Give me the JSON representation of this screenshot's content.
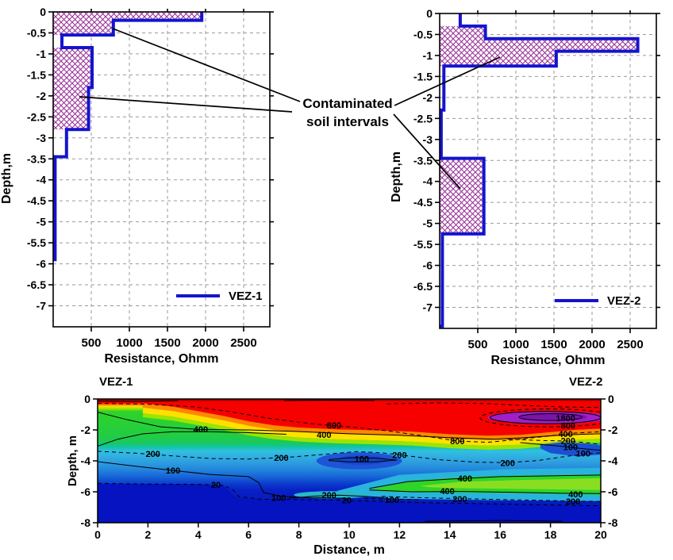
{
  "annotation": {
    "line1": "Contaminated",
    "line2": "soil intervals"
  },
  "colors": {
    "curve": "#1414cf",
    "hatch": "#993399",
    "grid": "#9a9a9a",
    "axis": "#000000",
    "section": {
      "dark_red": "#a80000",
      "red": "#f60000",
      "orange": "#ff8800",
      "yellow": "#ffe000",
      "chartreuse": "#9ce400",
      "green": "#2ed428",
      "teal": "#10c4a0",
      "cyan": "#30c0e0",
      "light_blue": "#2f8fe0",
      "blue": "#1d55d6",
      "deep_blue": "#0613c0",
      "purple": "#a01fc8",
      "purple_core": "#7a15a8",
      "wedge_core": "#8ade22"
    }
  },
  "chart_data": [
    {
      "id": "vez1",
      "type": "step-line",
      "legend": "VEZ-1",
      "xlabel": "Resistance, Ohmm",
      "ylabel": "Depth,m",
      "xlim": [
        0,
        2840
      ],
      "xticks": [
        500,
        1000,
        1500,
        2000,
        2500
      ],
      "ylim": [
        0,
        -7.5
      ],
      "yticks": [
        0,
        -0.5,
        -1,
        -1.5,
        -2,
        -2.5,
        -3,
        -3.5,
        -4,
        -4.5,
        -5,
        -5.5,
        -6,
        -6.5,
        -7
      ],
      "layers": [
        {
          "from": 0,
          "to": -0.2,
          "resistance": 1950
        },
        {
          "from": -0.2,
          "to": -0.55,
          "resistance": 790
        },
        {
          "from": -0.55,
          "to": -0.85,
          "resistance": 115
        },
        {
          "from": -0.85,
          "to": -1.8,
          "resistance": 510
        },
        {
          "from": -1.8,
          "to": -2.8,
          "resistance": 465
        },
        {
          "from": -2.8,
          "to": -3.45,
          "resistance": 175
        },
        {
          "from": -3.45,
          "to": -5.9,
          "resistance": 25
        }
      ],
      "contaminated_intervals": [
        [
          0,
          -0.55
        ],
        [
          -0.85,
          -2.8
        ]
      ]
    },
    {
      "id": "vez2",
      "type": "step-line",
      "legend": "VEZ-2",
      "xlabel": "Resistance, Ohmm",
      "ylabel": "Depth,m",
      "xlim": [
        0,
        2840
      ],
      "xticks": [
        500,
        1000,
        1500,
        2000,
        2500
      ],
      "ylim": [
        0,
        -7.5
      ],
      "yticks": [
        0,
        -0.5,
        -1,
        -1.5,
        -2,
        -2.5,
        -3,
        -3.5,
        -4,
        -4.5,
        -5,
        -5.5,
        -6,
        -6.5,
        -7
      ],
      "layers": [
        {
          "from": 0,
          "to": -0.3,
          "resistance": 270
        },
        {
          "from": -0.3,
          "to": -0.6,
          "resistance": 600
        },
        {
          "from": -0.6,
          "to": -0.9,
          "resistance": 2600
        },
        {
          "from": -0.9,
          "to": -1.25,
          "resistance": 1530
        },
        {
          "from": -1.25,
          "to": -2.3,
          "resistance": 55
        },
        {
          "from": -2.3,
          "to": -3.45,
          "resistance": 20
        },
        {
          "from": -3.45,
          "to": -5.25,
          "resistance": 580
        },
        {
          "from": -5.25,
          "to": -7.45,
          "resistance": 35
        }
      ],
      "contaminated_intervals": [
        [
          -0.3,
          -1.25
        ],
        [
          -3.45,
          -5.25
        ]
      ]
    },
    {
      "id": "section",
      "type": "contour",
      "title_left": "VEZ-1",
      "title_right": "VEZ-2",
      "xlabel": "Distance, m",
      "ylabel": "Depth, m",
      "xlim": [
        0,
        20
      ],
      "xticks": [
        0,
        2,
        4,
        6,
        8,
        10,
        12,
        14,
        16,
        18,
        20
      ],
      "ylim": [
        0,
        -8
      ],
      "yticks": [
        0,
        -2,
        -4,
        -6,
        -8
      ],
      "contour_labels": [
        {
          "x": 4.1,
          "d": -1.95,
          "v": "400"
        },
        {
          "x": 9.0,
          "d": -2.3,
          "v": "400"
        },
        {
          "x": 9.4,
          "d": -1.68,
          "v": "800"
        },
        {
          "x": 14.3,
          "d": -2.72,
          "v": "800"
        },
        {
          "x": 2.2,
          "d": -3.55,
          "v": "200"
        },
        {
          "x": 7.3,
          "d": -3.8,
          "v": "200"
        },
        {
          "x": 12.0,
          "d": -3.62,
          "v": "200"
        },
        {
          "x": 16.3,
          "d": -4.12,
          "v": "200"
        },
        {
          "x": 3.0,
          "d": -4.62,
          "v": "100"
        },
        {
          "x": 10.5,
          "d": -3.88,
          "v": "100"
        },
        {
          "x": 19.3,
          "d": -3.52,
          "v": "100"
        },
        {
          "x": 4.7,
          "d": -5.55,
          "v": "20"
        },
        {
          "x": 9.9,
          "d": -6.55,
          "v": "20"
        },
        {
          "x": 7.2,
          "d": -6.38,
          "v": "100"
        },
        {
          "x": 11.7,
          "d": -6.5,
          "v": "100"
        },
        {
          "x": 9.2,
          "d": -6.2,
          "v": "200"
        },
        {
          "x": 14.6,
          "d": -5.12,
          "v": "400"
        },
        {
          "x": 13.9,
          "d": -5.95,
          "v": "400"
        },
        {
          "x": 19.0,
          "d": -6.15,
          "v": "400"
        },
        {
          "x": 14.4,
          "d": -6.45,
          "v": "200"
        },
        {
          "x": 18.9,
          "d": -6.62,
          "v": "200"
        },
        {
          "x": 18.6,
          "d": -1.22,
          "v": "1800"
        },
        {
          "x": 18.7,
          "d": -1.72,
          "v": "800"
        },
        {
          "x": 18.6,
          "d": -2.25,
          "v": "400"
        },
        {
          "x": 18.7,
          "d": -2.7,
          "v": "200"
        },
        {
          "x": 18.8,
          "d": -3.1,
          "v": "100"
        }
      ]
    }
  ]
}
